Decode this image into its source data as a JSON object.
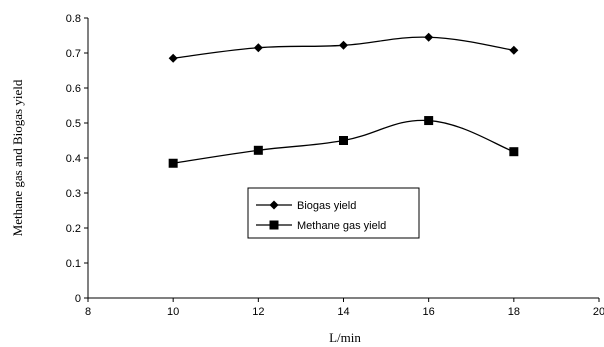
{
  "chart_data": {
    "type": "line",
    "xlabel": "L/min",
    "ylabel": "Methane gas and Biogas yield",
    "xlim": [
      8,
      20
    ],
    "ylim": [
      0,
      0.8
    ],
    "x_ticks": [
      "8",
      "10",
      "12",
      "14",
      "16",
      "18",
      "20"
    ],
    "y_ticks": [
      "0",
      "0.1",
      "0.2",
      "0.3",
      "0.4",
      "0.5",
      "0.6",
      "0.7",
      "0.8"
    ],
    "grid": false,
    "legend_position": "center",
    "series": [
      {
        "name": "Biogas  yield",
        "marker": "diamond",
        "color": "#000000",
        "x": [
          10,
          12,
          14,
          16,
          18
        ],
        "y": [
          0.685,
          0.715,
          0.722,
          0.745,
          0.708
        ]
      },
      {
        "name": "Methane gas yield",
        "marker": "square",
        "color": "#000000",
        "x": [
          10,
          12,
          14,
          16,
          18
        ],
        "y": [
          0.385,
          0.422,
          0.45,
          0.507,
          0.418
        ]
      }
    ]
  }
}
